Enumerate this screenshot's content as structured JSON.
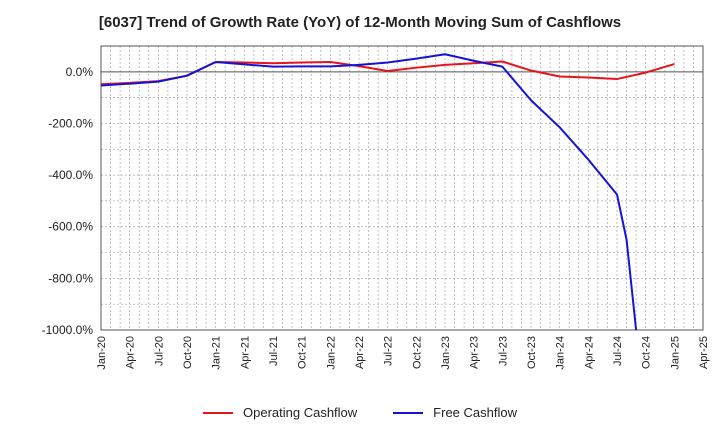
{
  "chart_data": {
    "type": "line",
    "title": "[6037]  Trend of Growth Rate (YoY) of 12-Month Moving Sum of Cashflows",
    "xlabel": "",
    "ylabel": "",
    "ylim": [
      -1000,
      100
    ],
    "yticks": [
      0,
      -200,
      -400,
      -600,
      -800,
      -1000
    ],
    "ytick_labels": [
      "0.0%",
      "-200.0%",
      "-400.0%",
      "-600.0%",
      "-800.0%",
      "-1000.0%"
    ],
    "x_tick_labels": [
      "Jan-20",
      "Apr-20",
      "Jul-20",
      "Oct-20",
      "Jan-21",
      "Apr-21",
      "Jul-21",
      "Oct-21",
      "Jan-22",
      "Apr-22",
      "Jul-22",
      "Oct-22",
      "Jan-23",
      "Apr-23",
      "Jul-23",
      "Oct-23",
      "Jan-24",
      "Apr-24",
      "Jul-24",
      "Oct-24",
      "Jan-25",
      "Apr-25"
    ],
    "grid": true,
    "legend_position": "bottom",
    "series": [
      {
        "name": "Operating Cashflow",
        "color": "#e8141b",
        "points": [
          [
            "Jan-20",
            -48
          ],
          [
            "Apr-20",
            -43
          ],
          [
            "Jul-20",
            -36
          ],
          [
            "Oct-20",
            -15
          ],
          [
            "Jan-21",
            38
          ],
          [
            "Apr-21",
            36
          ],
          [
            "Jul-21",
            33
          ],
          [
            "Oct-21",
            36
          ],
          [
            "Jan-22",
            38
          ],
          [
            "Apr-22",
            22
          ],
          [
            "Jul-22",
            3
          ],
          [
            "Oct-22",
            16
          ],
          [
            "Jan-23",
            27
          ],
          [
            "Apr-23",
            33
          ],
          [
            "Jul-23",
            40
          ],
          [
            "Oct-23",
            5
          ],
          [
            "Jan-24",
            -18
          ],
          [
            "Apr-24",
            -22
          ],
          [
            "Jul-24",
            -28
          ],
          [
            "Oct-24",
            -3
          ],
          [
            "Jan-25",
            30
          ]
        ]
      },
      {
        "name": "Free Cashflow",
        "color": "#1414d4",
        "points": [
          [
            "Jan-20",
            -53
          ],
          [
            "Apr-20",
            -46
          ],
          [
            "Jul-20",
            -38
          ],
          [
            "Oct-20",
            -15
          ],
          [
            "Jan-21",
            38
          ],
          [
            "Apr-21",
            29
          ],
          [
            "Jul-21",
            20
          ],
          [
            "Oct-21",
            21
          ],
          [
            "Jan-22",
            21
          ],
          [
            "Apr-22",
            27
          ],
          [
            "Jul-22",
            36
          ],
          [
            "Oct-22",
            51
          ],
          [
            "Jan-23",
            68
          ],
          [
            "Apr-23",
            43
          ],
          [
            "Jul-23",
            20
          ],
          [
            "Oct-23",
            -110
          ],
          [
            "Jan-24",
            -215
          ],
          [
            "Apr-24",
            -340
          ],
          [
            "Jul-24",
            -475
          ],
          [
            "Aug-24",
            -650
          ],
          [
            "Sep-24",
            -1000
          ]
        ]
      }
    ]
  }
}
